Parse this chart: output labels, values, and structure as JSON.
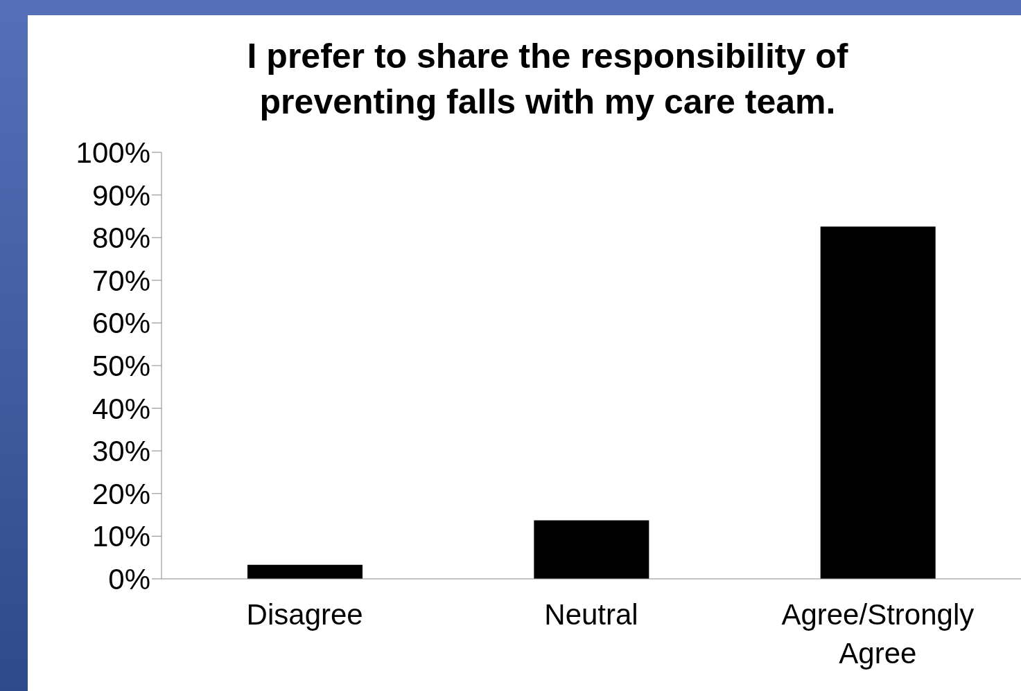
{
  "chart_data": {
    "type": "bar",
    "title": "I prefer to share the responsibility of preventing falls with my care team.",
    "categories": [
      "Disagree",
      "Neutral",
      "Agree/Strongly Agree"
    ],
    "values": [
      3.3,
      13.7,
      82.6
    ],
    "color": "#000000",
    "ylim": [
      0,
      100
    ],
    "yticks": [
      {
        "value": 0,
        "label": "0%"
      },
      {
        "value": 10,
        "label": "10%"
      },
      {
        "value": 20,
        "label": "20%"
      },
      {
        "value": 30,
        "label": "30%"
      },
      {
        "value": 40,
        "label": "40%"
      },
      {
        "value": 50,
        "label": "50%"
      },
      {
        "value": 60,
        "label": "60%"
      },
      {
        "value": 70,
        "label": "70%"
      },
      {
        "value": 80,
        "label": "80%"
      },
      {
        "value": 90,
        "label": "90%"
      },
      {
        "value": 100,
        "label": "100%"
      }
    ],
    "grid": false,
    "legend": false
  }
}
